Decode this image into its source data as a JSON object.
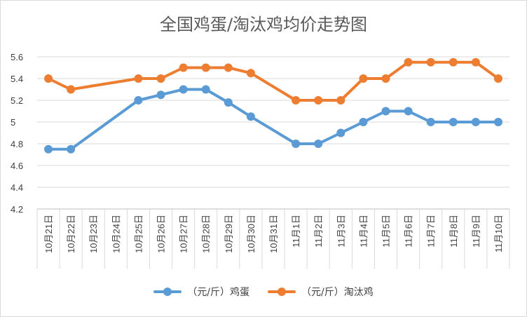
{
  "chart_data": {
    "type": "line",
    "title": "全国鸡蛋/淘汰鸡均价走势图",
    "xlabel": "",
    "ylabel": "",
    "categories": [
      "10月21日",
      "10月22日",
      "10月23日",
      "10月24日",
      "10月25日",
      "10月26日",
      "10月27日",
      "10月28日",
      "10月29日",
      "10月30日",
      "10月31日",
      "11月1日",
      "11月2日",
      "11月3日",
      "11月4日",
      "11月5日",
      "11月6日",
      "11月7日",
      "11月8日",
      "11月9日",
      "11月10日"
    ],
    "ylim": [
      4.2,
      5.6
    ],
    "yticks": [
      4.2,
      4.4,
      4.6,
      4.8,
      5,
      5.2,
      5.4,
      5.6
    ],
    "grid": true,
    "legend_position": "bottom",
    "series": [
      {
        "name": "（元/斤）鸡蛋",
        "color": "#5b9bd5",
        "values": [
          4.75,
          4.75,
          null,
          null,
          5.2,
          5.25,
          5.3,
          5.3,
          5.18,
          5.05,
          null,
          4.8,
          4.8,
          4.9,
          5.0,
          5.1,
          5.1,
          5.0,
          5.0,
          5.0,
          5.0
        ]
      },
      {
        "name": "（元/斤）淘汰鸡",
        "color": "#ed7d31",
        "values": [
          5.4,
          5.3,
          null,
          null,
          5.4,
          5.4,
          5.5,
          5.5,
          5.5,
          5.45,
          null,
          5.2,
          5.2,
          5.2,
          5.4,
          5.4,
          5.55,
          5.55,
          5.55,
          5.55,
          5.4
        ]
      }
    ]
  }
}
